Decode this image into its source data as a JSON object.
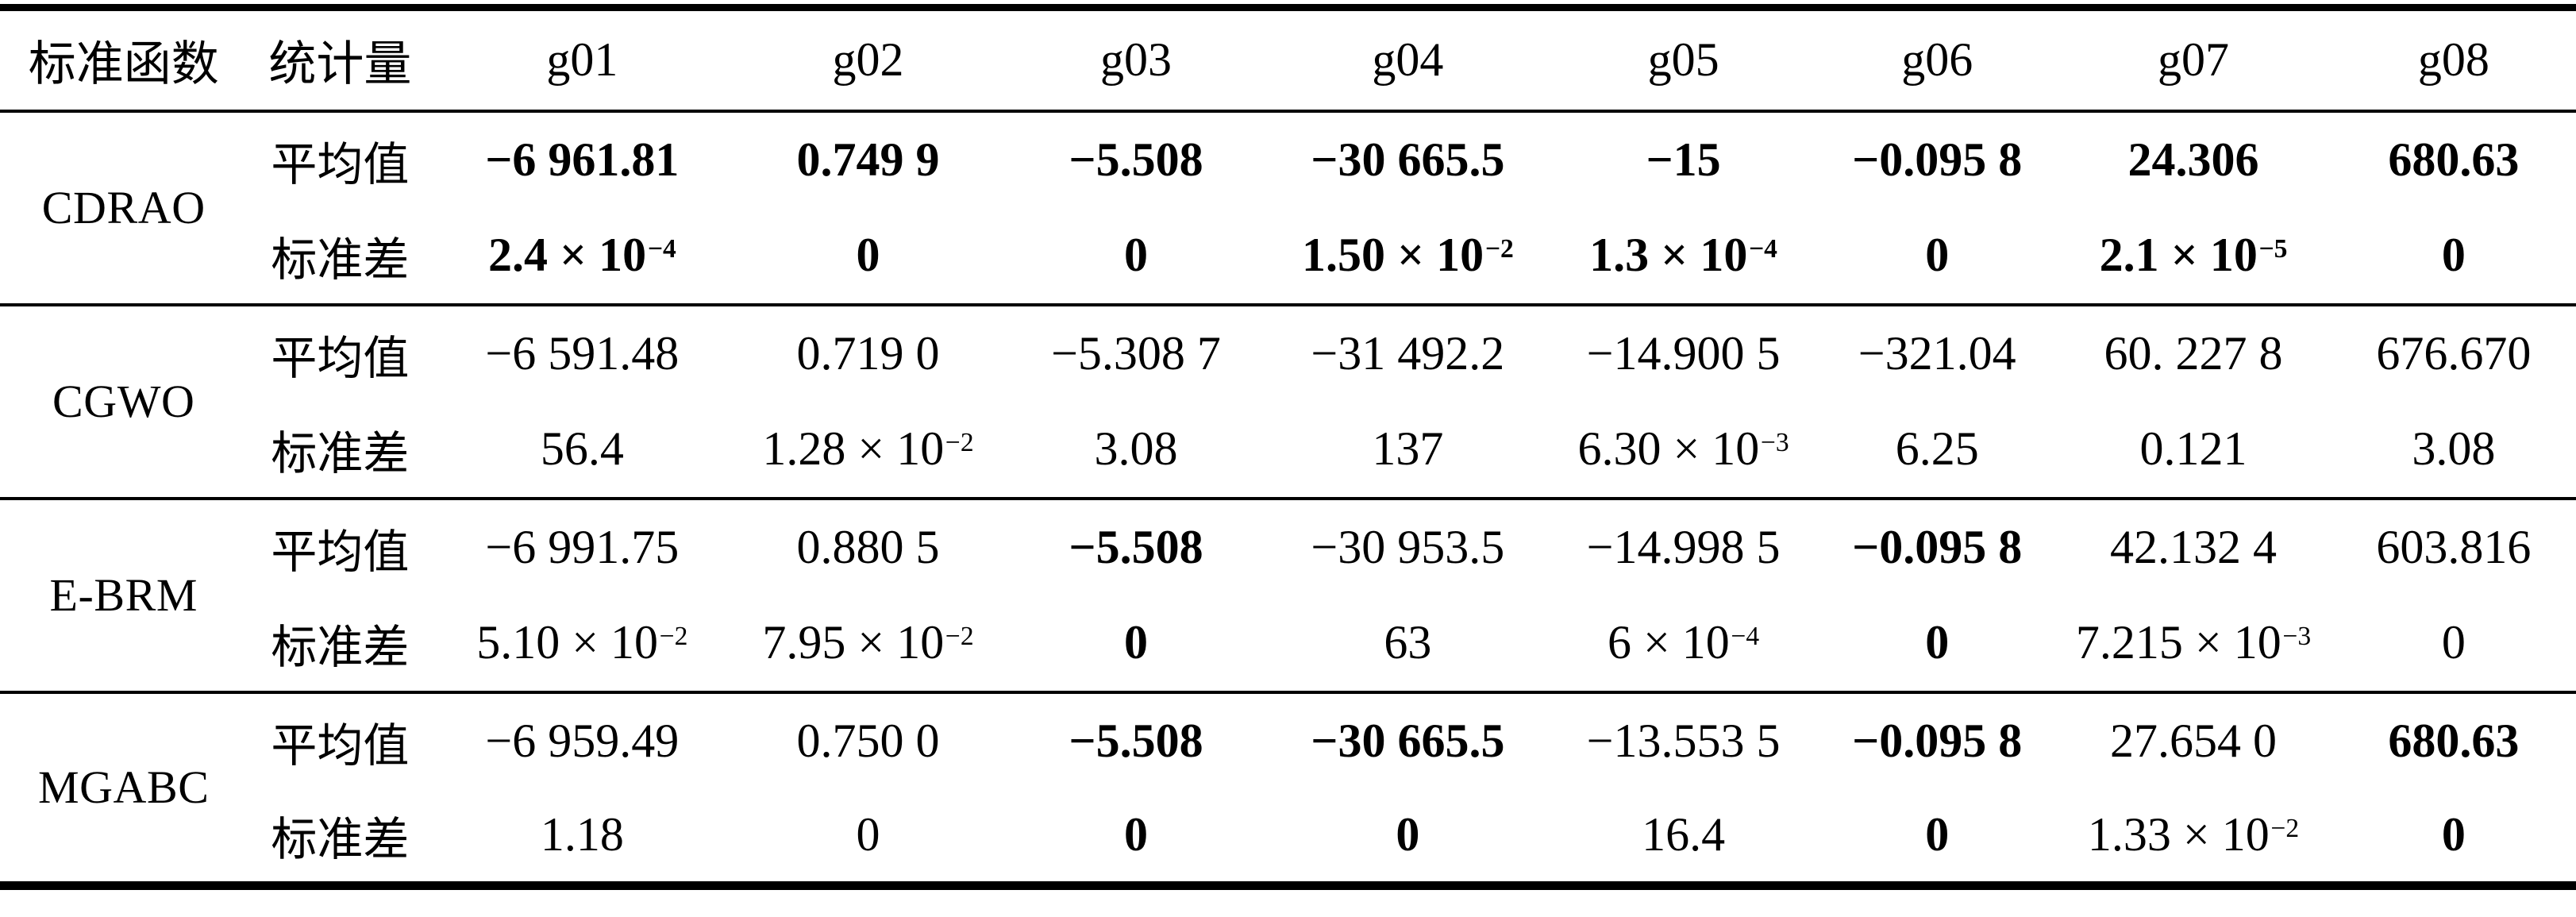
{
  "table": {
    "columns": [
      "标准函数",
      "统计量",
      "g01",
      "g02",
      "g03",
      "g04",
      "g05",
      "g06",
      "g07",
      "g08"
    ],
    "row_labels": {
      "mean": "平均值",
      "std": "标准差"
    },
    "groups": [
      {
        "name": "CDRAO",
        "mean": [
          {
            "t": "−6 961.81",
            "b": true
          },
          {
            "t": "0.749 9",
            "b": true
          },
          {
            "t": "−5.508",
            "b": true
          },
          {
            "t": "−30 665.5",
            "b": true
          },
          {
            "t": "−15",
            "b": true
          },
          {
            "t": "−0.095 8",
            "b": true
          },
          {
            "t": "24.306",
            "b": true
          },
          {
            "t": "680.63",
            "b": true
          }
        ],
        "std": [
          {
            "t": "2.4 × 10",
            "sup": "−4",
            "b": true
          },
          {
            "t": "0",
            "b": true
          },
          {
            "t": "0",
            "b": true
          },
          {
            "t": "1.50 × 10",
            "sup": "−2",
            "b": true
          },
          {
            "t": "1.3 × 10",
            "sup": "−4",
            "b": true
          },
          {
            "t": "0",
            "b": true
          },
          {
            "t": "2.1 × 10",
            "sup": "−5",
            "b": true
          },
          {
            "t": "0",
            "b": true
          }
        ]
      },
      {
        "name": "CGWO",
        "mean": [
          {
            "t": "−6 591.48",
            "b": false
          },
          {
            "t": "0.719 0",
            "b": false
          },
          {
            "t": "−5.308 7",
            "b": false
          },
          {
            "t": "−31 492.2",
            "b": false
          },
          {
            "t": "−14.900 5",
            "b": false
          },
          {
            "t": "−321.04",
            "b": false
          },
          {
            "t": "60. 227 8",
            "b": false
          },
          {
            "t": "676.670",
            "b": false
          }
        ],
        "std": [
          {
            "t": "56.4",
            "b": false
          },
          {
            "t": "1.28 × 10",
            "sup": "−2",
            "b": false
          },
          {
            "t": "3.08",
            "b": false
          },
          {
            "t": "137",
            "b": false
          },
          {
            "t": "6.30 × 10",
            "sup": "−3",
            "b": false
          },
          {
            "t": "6.25",
            "b": false
          },
          {
            "t": "0.121",
            "b": false
          },
          {
            "t": "3.08",
            "b": false
          }
        ]
      },
      {
        "name": "E-BRM",
        "mean": [
          {
            "t": "−6 991.75",
            "b": false
          },
          {
            "t": "0.880 5",
            "b": false
          },
          {
            "t": "−5.508",
            "b": true
          },
          {
            "t": "−30 953.5",
            "b": false
          },
          {
            "t": "−14.998 5",
            "b": false
          },
          {
            "t": "−0.095 8",
            "b": true
          },
          {
            "t": "42.132 4",
            "b": false
          },
          {
            "t": "603.816",
            "b": false
          }
        ],
        "std": [
          {
            "t": "5.10 × 10",
            "sup": "−2",
            "b": false
          },
          {
            "t": "7.95 × 10",
            "sup": "−2",
            "b": false
          },
          {
            "t": "0",
            "b": true
          },
          {
            "t": "63",
            "b": false
          },
          {
            "t": "6 × 10",
            "sup": "−4",
            "b": false
          },
          {
            "t": "0",
            "b": true
          },
          {
            "t": "7.215 × 10",
            "sup": "−3",
            "b": false
          },
          {
            "t": "0",
            "b": false
          }
        ]
      },
      {
        "name": "MGABC",
        "mean": [
          {
            "t": "−6 959.49",
            "b": false
          },
          {
            "t": "0.750 0",
            "b": false
          },
          {
            "t": "−5.508",
            "b": true
          },
          {
            "t": "−30 665.5",
            "b": true
          },
          {
            "t": "−13.553 5",
            "b": false
          },
          {
            "t": "−0.095 8",
            "b": true
          },
          {
            "t": "27.654 0",
            "b": false
          },
          {
            "t": "680.63",
            "b": true
          }
        ],
        "std": [
          {
            "t": "1.18",
            "b": false
          },
          {
            "t": "0",
            "b": false
          },
          {
            "t": "0",
            "b": true
          },
          {
            "t": "0",
            "b": true
          },
          {
            "t": "16.4",
            "b": false
          },
          {
            "t": "0",
            "b": true
          },
          {
            "t": "1.33 × 10",
            "sup": "−2",
            "b": false
          },
          {
            "t": "0",
            "b": true
          }
        ]
      }
    ]
  }
}
